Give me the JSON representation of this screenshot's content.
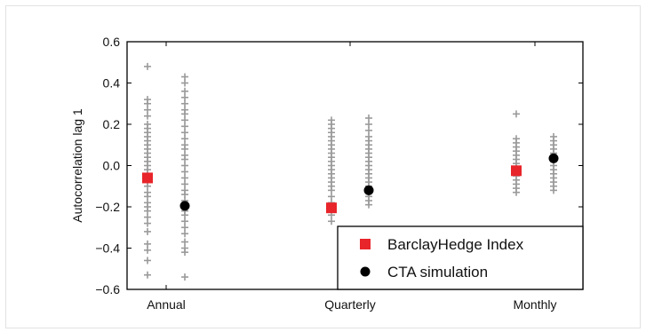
{
  "chart_data": {
    "type": "scatter",
    "title": "",
    "xlabel": "",
    "ylabel": "Autocorrelation lag 1",
    "categories": [
      "Annual",
      "Quarterly",
      "Monthly"
    ],
    "ylim": [
      -0.6,
      0.6
    ],
    "yticks": [
      0.6,
      0.4,
      0.2,
      0.0,
      -0.2,
      -0.4,
      -0.6
    ],
    "ytick_labels": [
      "0.6",
      "0.4",
      "0.2",
      "0.0",
      "−0.2",
      "−0.4",
      "−0.6"
    ],
    "grid": false,
    "legend_position": "bottom-right",
    "series": [
      {
        "name": "BarclayHedge Index",
        "marker": "square",
        "color": "#e8252a",
        "values": [
          -0.06,
          -0.205,
          -0.025
        ]
      },
      {
        "name": "CTA simulation",
        "marker": "circle",
        "color": "#000000",
        "values": [
          -0.195,
          -0.12,
          0.035
        ]
      }
    ],
    "distributions": {
      "marker": "plus",
      "color": "#9a9a9a",
      "note_groups": [
        "index-bootstrap",
        "simulation-bootstrap"
      ],
      "groups": [
        {
          "category": "Annual",
          "index_spread": [
            -0.53,
            -0.46,
            -0.41,
            -0.38,
            -0.32,
            -0.28,
            -0.25,
            -0.22,
            -0.2,
            -0.18,
            -0.15,
            -0.13,
            -0.1,
            -0.08,
            -0.06,
            -0.04,
            -0.02,
            0.0,
            0.02,
            0.04,
            0.06,
            0.08,
            0.1,
            0.12,
            0.14,
            0.16,
            0.18,
            0.2,
            0.24,
            0.27,
            0.3,
            0.32,
            0.48
          ],
          "sim_spread": [
            -0.54,
            -0.42,
            -0.4,
            -0.37,
            -0.33,
            -0.3,
            -0.27,
            -0.24,
            -0.22,
            -0.2,
            -0.17,
            -0.14,
            -0.12,
            -0.09,
            -0.06,
            -0.03,
            0.0,
            0.03,
            0.05,
            0.08,
            0.1,
            0.13,
            0.16,
            0.19,
            0.22,
            0.25,
            0.27,
            0.3,
            0.33,
            0.36,
            0.4,
            0.43
          ]
        },
        {
          "category": "Quarterly",
          "index_spread": [
            -0.27,
            -0.24,
            -0.21,
            -0.18,
            -0.15,
            -0.12,
            -0.1,
            -0.08,
            -0.06,
            -0.04,
            -0.02,
            0.0,
            0.02,
            0.04,
            0.06,
            0.08,
            0.1,
            0.12,
            0.14,
            0.16,
            0.18,
            0.2,
            0.22
          ],
          "sim_spread": [
            -0.19,
            -0.17,
            -0.15,
            -0.13,
            -0.1,
            -0.08,
            -0.06,
            -0.04,
            -0.02,
            0.0,
            0.02,
            0.04,
            0.06,
            0.08,
            0.1,
            0.12,
            0.14,
            0.17,
            0.2,
            0.23
          ]
        },
        {
          "category": "Monthly",
          "index_spread": [
            -0.13,
            -0.11,
            -0.09,
            -0.07,
            -0.05,
            -0.03,
            -0.01,
            0.01,
            0.03,
            0.05,
            0.07,
            0.09,
            0.11,
            0.13,
            0.25
          ],
          "sim_spread": [
            -0.12,
            -0.1,
            -0.08,
            -0.06,
            -0.04,
            -0.02,
            0.0,
            0.02,
            0.04,
            0.06,
            0.08,
            0.1,
            0.12,
            0.14
          ]
        }
      ]
    }
  }
}
